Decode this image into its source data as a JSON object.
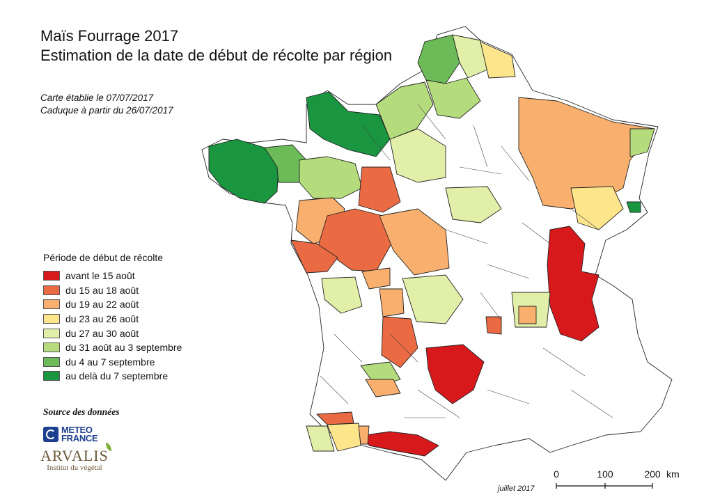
{
  "title": {
    "line1": "Maïs Fourrage 2017",
    "line2": "Estimation de la date de début de récolte par région"
  },
  "meta": {
    "line1": "Carte établie le 07/07/2017",
    "line2": "Caduque à partir du 26/07/2017"
  },
  "legend": {
    "title": "Période de début de récolte",
    "items": [
      {
        "label": "avant le 15 août",
        "color": "#d7191c"
      },
      {
        "label": "du 15 au 18 août",
        "color": "#ea6b43"
      },
      {
        "label": "du 19 au 22 août",
        "color": "#f9b06e"
      },
      {
        "label": "du 23 au 26 août",
        "color": "#fde58c"
      },
      {
        "label": "du 27 au 30 août",
        "color": "#e2efa8"
      },
      {
        "label": "du 31 août au 3 septembre",
        "color": "#b5dc7c"
      },
      {
        "label": "du 4 au 7 septembre",
        "color": "#6cbb58"
      },
      {
        "label": "au delà du 7 septembre",
        "color": "#1a9641"
      }
    ]
  },
  "source": {
    "title": "Source des données",
    "logo1_line1": "METEO",
    "logo1_line2": "FRANCE",
    "logo2_name": "ARVALIS",
    "logo2_sub": "Institut du végétal"
  },
  "scale": {
    "ticks": [
      "0",
      "100",
      "200"
    ],
    "unit": "km"
  },
  "date_note": "juillet 2017",
  "map_colors": {
    "outline": "#222222",
    "none": "#ffffff"
  }
}
